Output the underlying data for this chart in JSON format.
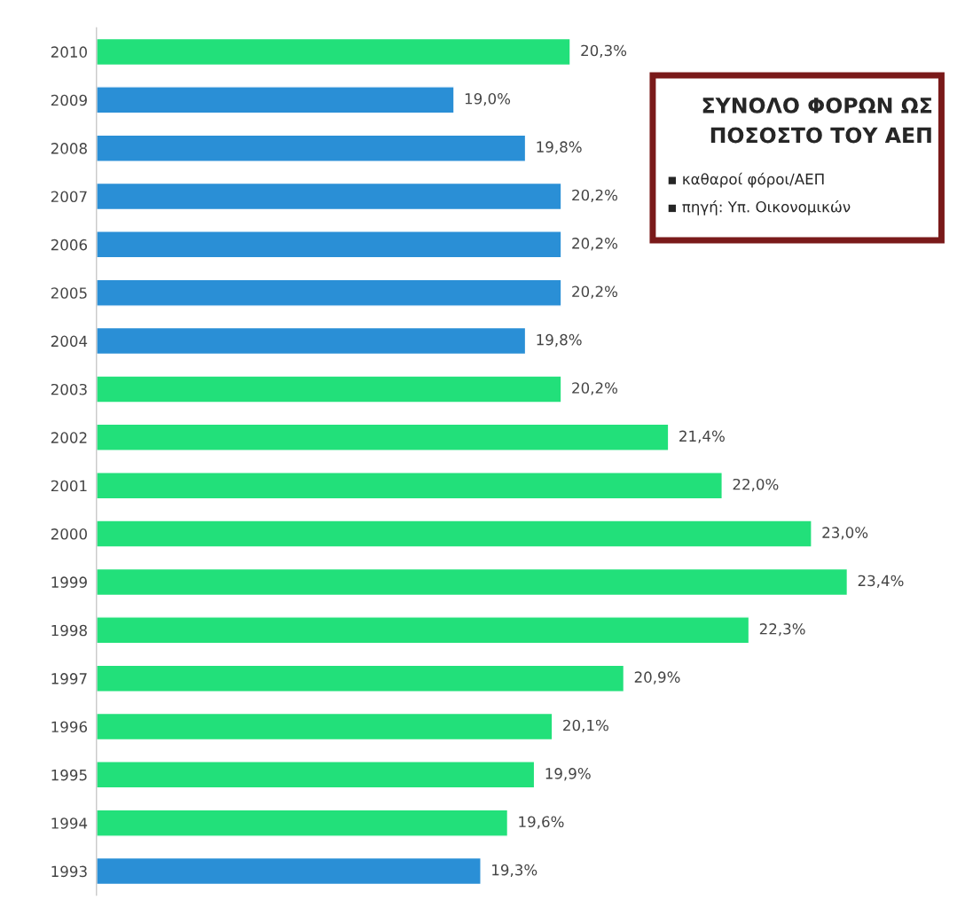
{
  "chart_data": {
    "type": "bar",
    "orientation": "horizontal",
    "title": "ΣΥΝΟΛΟ ΦΟΡΩΝ ΩΣ\nΠΟΣΟΣΤΟ ΤΟΥ ΑΕΠ",
    "annotations": [
      "▪ καθαροί φόροι/ΑΕΠ",
      "▪ πηγή: Υπ. Οικονομικών"
    ],
    "categories": [
      "2010",
      "2009",
      "2008",
      "2007",
      "2006",
      "2005",
      "2004",
      "2003",
      "2002",
      "2001",
      "2000",
      "1999",
      "1998",
      "1997",
      "1996",
      "1995",
      "1994",
      "1993"
    ],
    "values": [
      20.3,
      19.0,
      19.8,
      20.2,
      20.2,
      20.2,
      19.8,
      20.2,
      21.4,
      22.0,
      23.0,
      23.4,
      22.3,
      20.9,
      20.1,
      19.9,
      19.6,
      19.3
    ],
    "value_labels": [
      "20,3%",
      "19,0%",
      "19,8%",
      "20,2%",
      "20,2%",
      "20,2%",
      "19,8%",
      "20,2%",
      "21,4%",
      "22,0%",
      "23,0%",
      "23,4%",
      "22,3%",
      "20,9%",
      "20,1%",
      "19,9%",
      "19,6%",
      "19,3%"
    ],
    "colors": [
      "#22e07a",
      "#2a8fd6",
      "#2a8fd6",
      "#2a8fd6",
      "#2a8fd6",
      "#2a8fd6",
      "#2a8fd6",
      "#22e07a",
      "#22e07a",
      "#22e07a",
      "#22e07a",
      "#22e07a",
      "#22e07a",
      "#22e07a",
      "#22e07a",
      "#22e07a",
      "#22e07a",
      "#2a8fd6"
    ],
    "xlim": [
      15,
      24.5
    ],
    "tick_labels": "y",
    "grid": false,
    "legend": false
  }
}
